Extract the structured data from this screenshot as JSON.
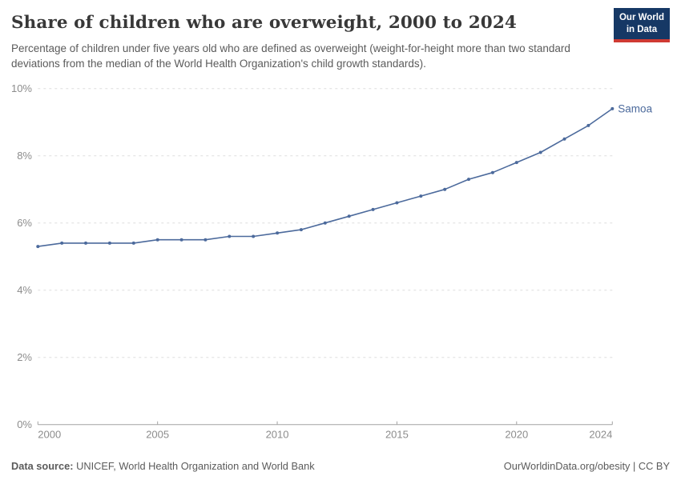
{
  "header": {
    "title": "Share of children who are overweight, 2000 to 2024",
    "subtitle": "Percentage of children under five years old who are defined as overweight (weight-for-height more than two standard deviations from the median of the World Health Organization's child growth standards).",
    "logo": {
      "line1": "Our World",
      "line2": "in Data"
    }
  },
  "footer": {
    "datasource_label": "Data source:",
    "datasource_value": " UNICEF, World Health Organization and World Bank",
    "credit": "OurWorldinData.org/obesity | CC BY"
  },
  "colors": {
    "series": "#4c6a9c",
    "grid": "#dedede",
    "axis": "#a3a3a3",
    "tick_label": "#8c8c8c",
    "logo_bg": "#163865",
    "logo_stripe": "#cf3a33"
  },
  "chart_data": {
    "type": "line",
    "title": "Share of children who are overweight, 2000 to 2024",
    "xlabel": "",
    "ylabel": "",
    "xlim": [
      2000,
      2024
    ],
    "ylim": [
      0,
      10
    ],
    "grid": "horizontal-dashed",
    "legend_position": "end-of-line-label",
    "x_ticks": [
      2000,
      2005,
      2010,
      2015,
      2020,
      2024
    ],
    "y_ticks": [
      0,
      2,
      4,
      6,
      8,
      10
    ],
    "y_tick_labels": [
      "0%",
      "2%",
      "4%",
      "6%",
      "8%",
      "10%"
    ],
    "series": [
      {
        "name": "Samoa",
        "color": "#4c6a9c",
        "x": [
          2000,
          2001,
          2002,
          2003,
          2004,
          2005,
          2006,
          2007,
          2008,
          2009,
          2010,
          2011,
          2012,
          2013,
          2014,
          2015,
          2016,
          2017,
          2018,
          2019,
          2020,
          2021,
          2022,
          2023,
          2024
        ],
        "values": [
          5.3,
          5.4,
          5.4,
          5.4,
          5.4,
          5.5,
          5.5,
          5.5,
          5.6,
          5.6,
          5.7,
          5.8,
          6.0,
          6.2,
          6.4,
          6.6,
          6.8,
          7.0,
          7.3,
          7.5,
          7.8,
          8.1,
          8.5,
          8.9,
          9.4
        ]
      }
    ]
  }
}
